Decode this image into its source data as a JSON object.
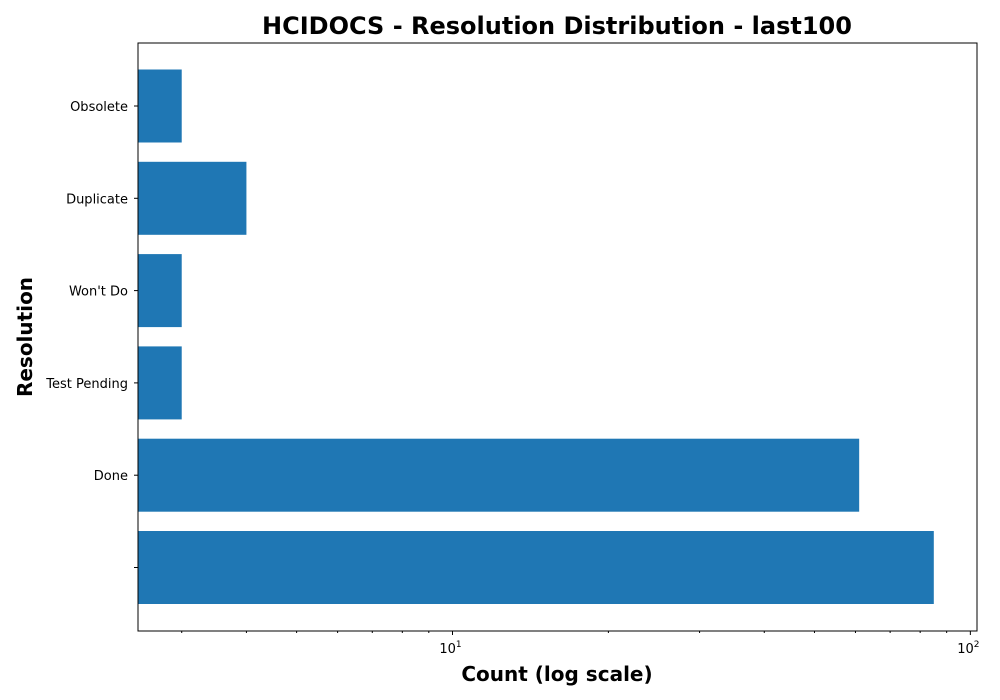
{
  "chart_data": {
    "type": "bar",
    "orientation": "horizontal",
    "title": "HCIDOCS - Resolution Distribution - last100",
    "xlabel": "Count (log scale)",
    "ylabel": "Resolution",
    "x_scale": "log",
    "xlim": [
      2.47,
      103
    ],
    "x_ticks": [
      {
        "value": 10,
        "base": "10",
        "exp": "1"
      },
      {
        "value": 100,
        "base": "10",
        "exp": "2"
      }
    ],
    "categories": [
      "",
      "Done",
      "Test Pending",
      "Won't Do",
      "Duplicate",
      "Obsolete"
    ],
    "values": [
      85,
      61,
      3,
      3,
      4,
      3
    ],
    "bar_color": "#1f77b4",
    "grid": false,
    "legend": "none"
  }
}
